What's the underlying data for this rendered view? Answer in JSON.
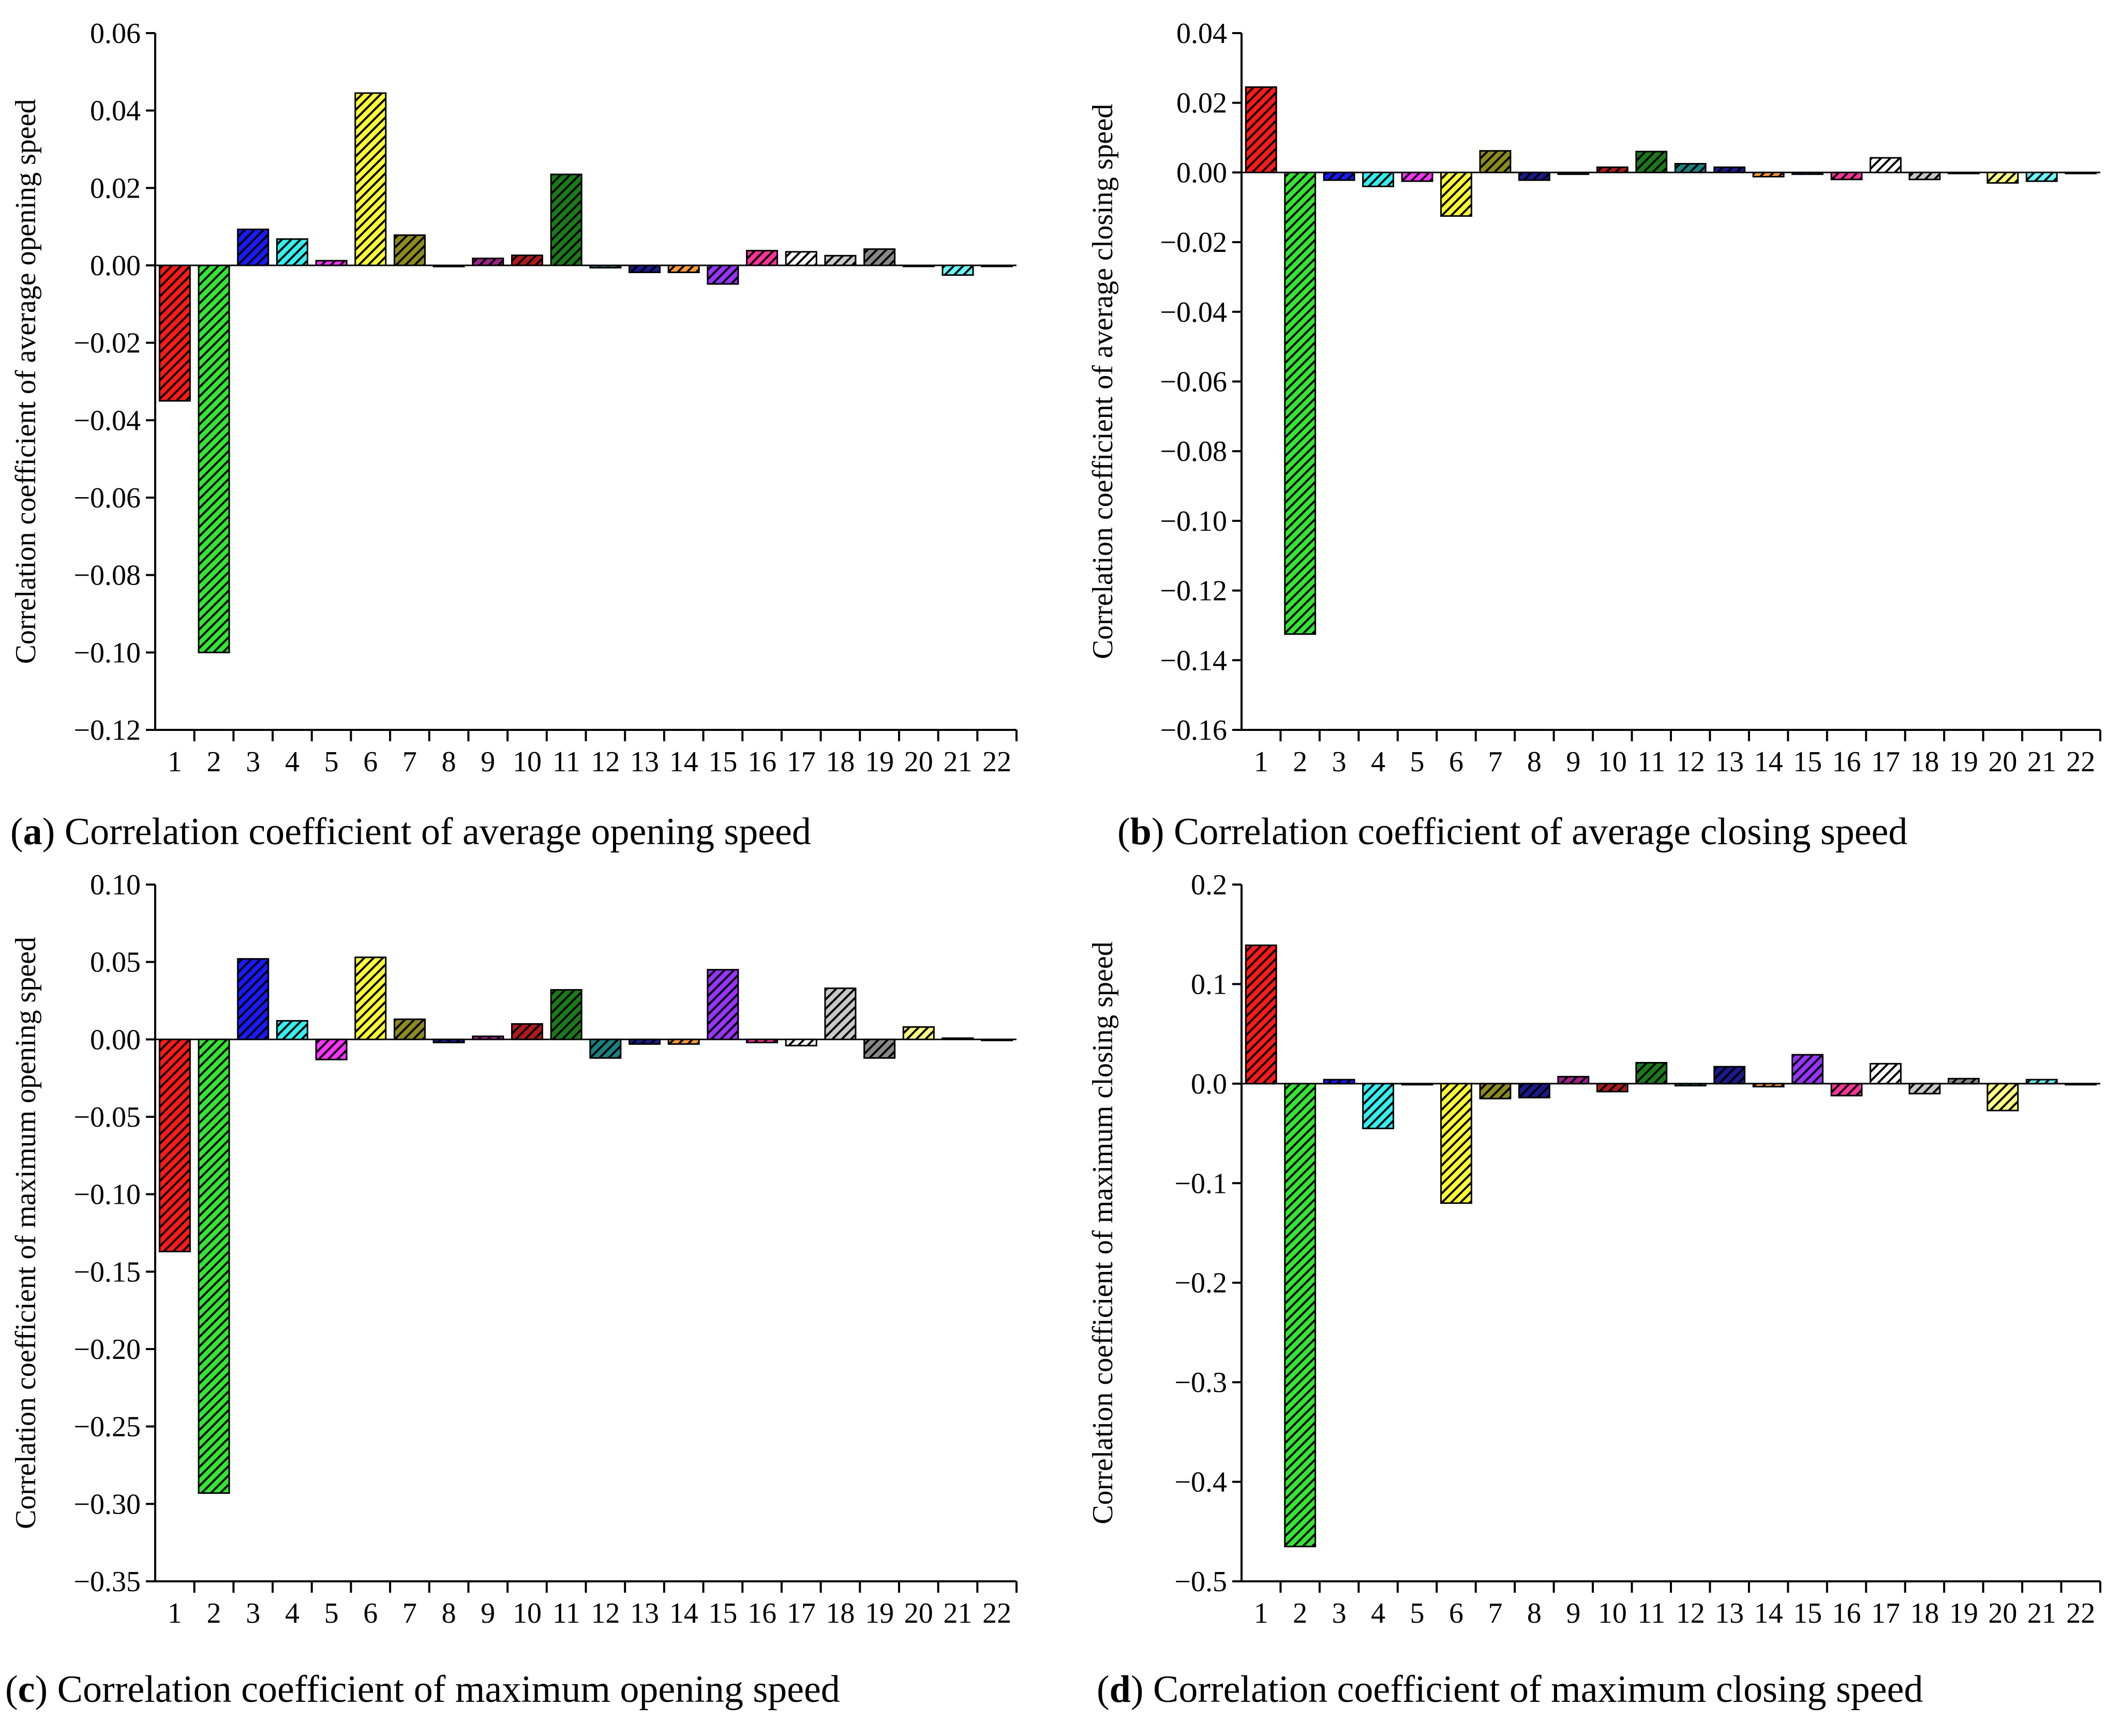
{
  "colors": {
    "bar_fills": [
      "#ff1a1a",
      "#33e633",
      "#1a1aff",
      "#33f0f0",
      "#ff33ff",
      "#ffff33",
      "#8c8c1a",
      "#1a1a8c",
      "#a0208c",
      "#b01a1a",
      "#1a7a1a",
      "#1a8080",
      "#1a1a8c",
      "#ff9933",
      "#9933ff",
      "#ff3399",
      "#ffffff",
      "#c8c8c8",
      "#888888",
      "#ffff80",
      "#66ffff",
      "#e0e0e0"
    ],
    "hatch": "#000000"
  },
  "chart_data": [
    {
      "id": "a",
      "type": "bar",
      "caption": {
        "letter": "a",
        "text": " Correlation coefficient of average opening speed"
      },
      "ylabel": "Correlation coefficient of average opening speed",
      "ylim": [
        -0.12,
        0.06
      ],
      "yticks": [
        0.06,
        0.04,
        0.02,
        0.0,
        -0.02,
        -0.04,
        -0.06,
        -0.08,
        -0.1,
        -0.12
      ],
      "ytick_labels": [
        "0.06",
        "0.04",
        "0.02",
        "0.00",
        "−0.02",
        "−0.04",
        "−0.06",
        "−0.08",
        "−0.10",
        "−0.12"
      ],
      "categories": [
        "1",
        "2",
        "3",
        "4",
        "5",
        "6",
        "7",
        "8",
        "9",
        "10",
        "11",
        "12",
        "13",
        "14",
        "15",
        "16",
        "17",
        "18",
        "19",
        "20",
        "21",
        "22"
      ],
      "values": [
        -0.035,
        -0.1,
        0.0093,
        0.0068,
        0.0012,
        0.0445,
        0.0078,
        -0.0003,
        0.0018,
        0.0026,
        0.0235,
        -0.0006,
        -0.0018,
        -0.0018,
        -0.0048,
        0.0038,
        0.0035,
        0.0025,
        0.0042,
        0.0,
        -0.0025,
        0.0
      ]
    },
    {
      "id": "b",
      "type": "bar",
      "caption": {
        "letter": "b",
        "text": " Correlation coefficient of average closing speed"
      },
      "ylabel": "Correlation coefficient of average closing speed",
      "ylim": [
        -0.16,
        0.04
      ],
      "yticks": [
        0.04,
        0.02,
        0.0,
        -0.02,
        -0.04,
        -0.06,
        -0.08,
        -0.1,
        -0.12,
        -0.14,
        -0.16
      ],
      "ytick_labels": [
        "0.04",
        "0.02",
        "0.00",
        "−0.02",
        "−0.04",
        "−0.06",
        "−0.08",
        "−0.10",
        "−0.12",
        "−0.14",
        "−0.16"
      ],
      "categories": [
        "1",
        "2",
        "3",
        "4",
        "5",
        "6",
        "7",
        "8",
        "9",
        "10",
        "11",
        "12",
        "13",
        "14",
        "15",
        "16",
        "17",
        "18",
        "19",
        "20",
        "21",
        "22"
      ],
      "values": [
        0.0245,
        -0.1325,
        -0.0022,
        -0.004,
        -0.0025,
        -0.0125,
        0.0062,
        -0.0022,
        -0.0005,
        0.0015,
        0.006,
        0.0025,
        0.0015,
        -0.0012,
        -0.0005,
        -0.002,
        0.0042,
        -0.002,
        0.0,
        -0.003,
        -0.0025,
        0.0
      ]
    },
    {
      "id": "c",
      "type": "bar",
      "caption": {
        "letter": "c",
        "text": " Correlation coefficient of maximum opening speed"
      },
      "ylabel": "Correlation coefficient of maximum opening speed",
      "ylim": [
        -0.35,
        0.1
      ],
      "yticks": [
        0.1,
        0.05,
        0.0,
        -0.05,
        -0.1,
        -0.15,
        -0.2,
        -0.25,
        -0.3,
        -0.35
      ],
      "ytick_labels": [
        "0.10",
        "0.05",
        "0.00",
        "−0.05",
        "−0.10",
        "−0.15",
        "−0.20",
        "−0.25",
        "−0.30",
        "−0.35"
      ],
      "categories": [
        "1",
        "2",
        "3",
        "4",
        "5",
        "6",
        "7",
        "8",
        "9",
        "10",
        "11",
        "12",
        "13",
        "14",
        "15",
        "16",
        "17",
        "18",
        "19",
        "20",
        "21",
        "22"
      ],
      "values": [
        -0.137,
        -0.293,
        0.052,
        0.012,
        -0.013,
        0.053,
        0.013,
        -0.002,
        0.002,
        0.01,
        0.032,
        -0.012,
        -0.003,
        -0.003,
        0.045,
        -0.002,
        -0.004,
        0.033,
        -0.012,
        0.008,
        0.0008,
        0.0
      ]
    },
    {
      "id": "d",
      "type": "bar",
      "caption": {
        "letter": "d",
        "text": " Correlation coefficient of maximum closing speed"
      },
      "ylabel": "Correlation coefficient of maximum closing speed",
      "ylim": [
        -0.5,
        0.2
      ],
      "yticks": [
        0.2,
        0.1,
        0.0,
        -0.1,
        -0.2,
        -0.3,
        -0.4,
        -0.5
      ],
      "ytick_labels": [
        "0.2",
        "0.1",
        "0.0",
        "−0.1",
        "−0.2",
        "−0.3",
        "−0.4",
        "−0.5"
      ],
      "categories": [
        "1",
        "2",
        "3",
        "4",
        "5",
        "6",
        "7",
        "8",
        "9",
        "10",
        "11",
        "12",
        "13",
        "14",
        "15",
        "16",
        "17",
        "18",
        "19",
        "20",
        "21",
        "22"
      ],
      "values": [
        0.139,
        -0.465,
        0.004,
        -0.045,
        0.0,
        -0.12,
        -0.015,
        -0.014,
        0.007,
        -0.008,
        0.021,
        -0.002,
        0.017,
        -0.003,
        0.029,
        -0.012,
        0.02,
        -0.01,
        0.005,
        -0.027,
        0.004,
        0.0
      ]
    }
  ]
}
